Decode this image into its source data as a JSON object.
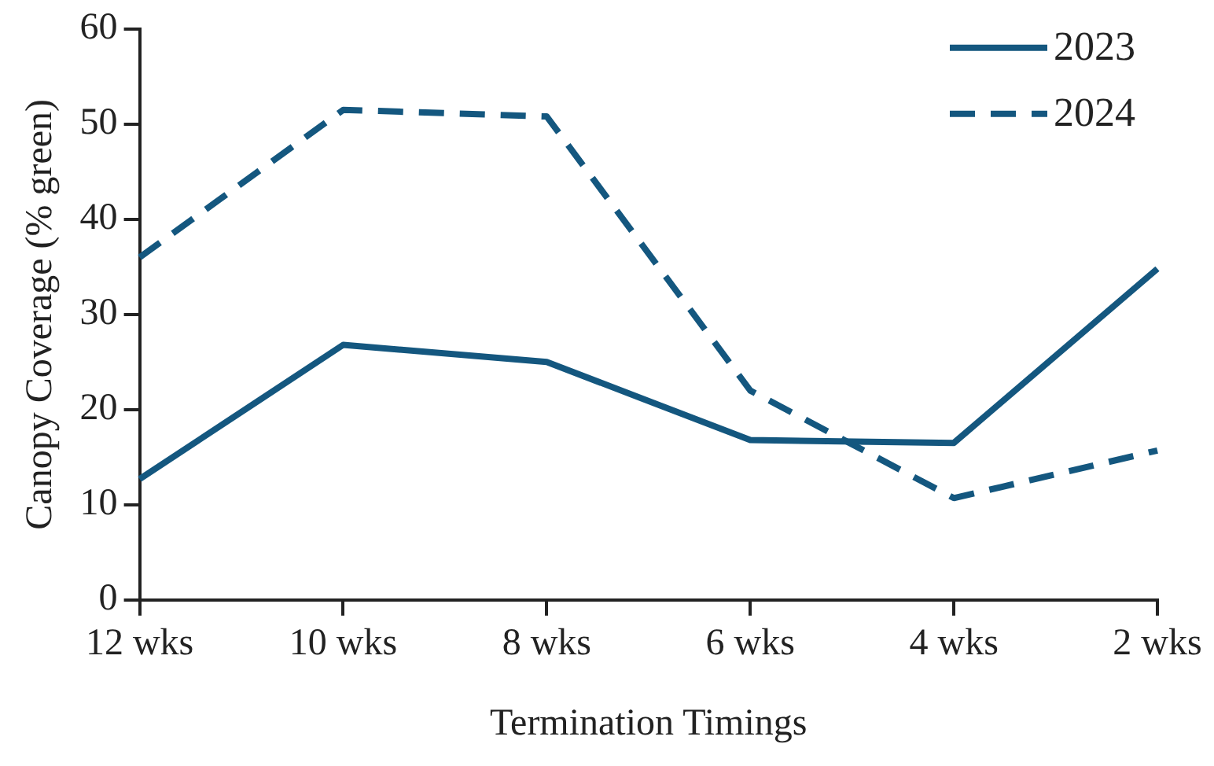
{
  "chart_data": {
    "type": "line",
    "xlabel": "Termination Timings",
    "ylabel": "Canopy Coverage (% green)",
    "categories": [
      "12 wks",
      "10 wks",
      "8 wks",
      "6 wks",
      "4 wks",
      "2 wks"
    ],
    "series": [
      {
        "name": "2023",
        "color": "#14577f",
        "line_style": "solid",
        "values": [
          12.7,
          26.8,
          25,
          16.8,
          16.5,
          34.8
        ]
      },
      {
        "name": "2024",
        "color": "#14577f",
        "line_style": "dashed",
        "values": [
          36,
          51.5,
          50.8,
          22,
          10.7,
          15.7
        ]
      }
    ],
    "ylim": [
      0,
      60
    ],
    "yticks": [
      0,
      10,
      20,
      30,
      40,
      50,
      60
    ],
    "grid": false,
    "legend": "top right",
    "marker": "none"
  }
}
